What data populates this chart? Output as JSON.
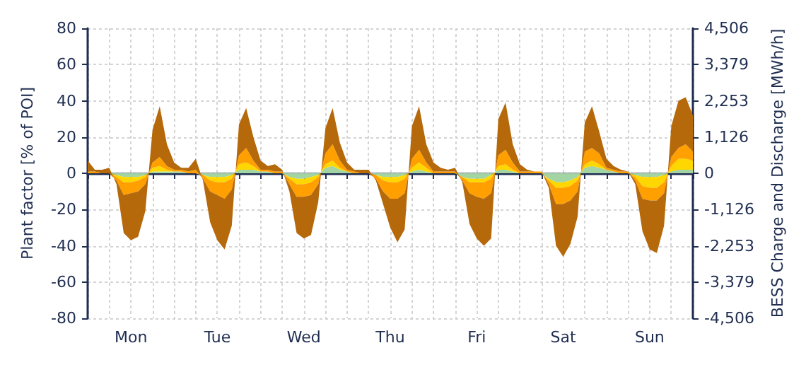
{
  "chart_data": {
    "type": "area",
    "stacked": true,
    "ylabel": "Plant factor [% of POI]",
    "y2label": "BESS Charge and Discharge [MWh/h]",
    "categories": [
      null,
      null,
      null,
      null,
      null,
      null,
      "Mon",
      null,
      null,
      null,
      null,
      null,
      null,
      null,
      null,
      null,
      null,
      null,
      "Tue",
      null,
      null,
      null,
      null,
      null,
      null,
      null,
      null,
      null,
      null,
      null,
      "Wed",
      null,
      null,
      null,
      null,
      null,
      null,
      null,
      null,
      null,
      null,
      null,
      "Thu",
      null,
      null,
      null,
      null,
      null,
      null,
      null,
      null,
      null,
      null,
      null,
      "Fri",
      null,
      null,
      null,
      null,
      null,
      null,
      null,
      null,
      null,
      null,
      null,
      "Sat",
      null,
      null,
      null,
      null,
      null,
      null,
      null,
      null,
      null,
      null,
      null,
      "Sun",
      null,
      null,
      null,
      null,
      null,
      null
    ],
    "series": [
      {
        "color": "#a3d4a3",
        "values": [
          0,
          0,
          0,
          0,
          -1,
          -2,
          -2,
          -2,
          -1,
          1,
          1,
          1,
          1,
          1,
          0,
          0,
          -1,
          -2,
          -2,
          -2,
          -1,
          2,
          2,
          2,
          1,
          1,
          0,
          0,
          -2,
          -3,
          -3,
          -2,
          -1,
          3,
          4,
          2,
          1,
          0,
          0,
          0,
          -1,
          -2,
          -2,
          -2,
          -1,
          1,
          2,
          1,
          0,
          0,
          0,
          0,
          -2,
          -3,
          -3,
          -3,
          -1,
          2,
          2,
          1,
          0,
          0,
          0,
          0,
          -3,
          -5,
          -5,
          -4,
          -2,
          3,
          4,
          3,
          2,
          1,
          0,
          0,
          -1,
          -2,
          -2,
          -2,
          -1,
          1,
          2,
          2,
          2
        ]
      },
      {
        "color": "#ffd700",
        "values": [
          0,
          0,
          0,
          0,
          -1,
          -3,
          -3,
          -2,
          -1,
          2,
          3,
          1,
          0,
          0,
          0,
          0,
          0,
          -2,
          -3,
          -3,
          -2,
          3,
          4,
          2,
          0,
          0,
          0,
          0,
          -1,
          -3,
          -3,
          -3,
          -1,
          2,
          3,
          1,
          0,
          0,
          0,
          0,
          0,
          -2,
          -3,
          -3,
          -2,
          2,
          4,
          2,
          0,
          0,
          0,
          0,
          0,
          -2,
          -2,
          -2,
          -2,
          2,
          3,
          1,
          0,
          0,
          0,
          0,
          -1,
          -3,
          -3,
          -3,
          -2,
          2,
          3,
          2,
          0,
          0,
          0,
          0,
          -1,
          -5,
          -6,
          -6,
          -4,
          3,
          6,
          6,
          5
        ]
      },
      {
        "color": "#ffa000",
        "values": [
          1,
          1,
          0,
          0,
          -2,
          -7,
          -6,
          -6,
          -4,
          3,
          5,
          2,
          1,
          1,
          1,
          2,
          -2,
          -6,
          -7,
          -9,
          -6,
          5,
          8,
          3,
          1,
          1,
          1,
          1,
          -3,
          -7,
          -7,
          -7,
          -4,
          6,
          9,
          4,
          1,
          1,
          0,
          0,
          -2,
          -6,
          -9,
          -9,
          -8,
          5,
          7,
          3,
          1,
          1,
          1,
          1,
          -2,
          -6,
          -8,
          -9,
          -8,
          6,
          8,
          4,
          1,
          1,
          1,
          1,
          -2,
          -9,
          -9,
          -8,
          -6,
          7,
          7,
          6,
          1,
          1,
          1,
          1,
          -2,
          -7,
          -7,
          -7,
          -6,
          5,
          6,
          8,
          5
        ]
      },
      {
        "color": "#b5690a",
        "values": [
          6,
          1,
          2,
          3,
          -2,
          -21,
          -26,
          -25,
          -15,
          18,
          28,
          12,
          4,
          1,
          2,
          6,
          -1,
          -17,
          -25,
          -28,
          -20,
          17,
          22,
          13,
          5,
          2,
          4,
          1,
          -4,
          -20,
          -23,
          -22,
          -10,
          14,
          20,
          10,
          4,
          1,
          2,
          2,
          -1,
          -7,
          -16,
          -24,
          -20,
          18,
          24,
          10,
          5,
          2,
          1,
          2,
          -1,
          -17,
          -23,
          -26,
          -25,
          20,
          26,
          10,
          4,
          1,
          0,
          0,
          -2,
          -23,
          -29,
          -24,
          -14,
          16,
          23,
          12,
          5,
          2,
          1,
          0,
          -2,
          -18,
          -27,
          -29,
          -18,
          17,
          26,
          26,
          20
        ]
      }
    ],
    "ylim": [
      -80,
      80
    ],
    "yticks": [
      -80,
      -60,
      -40,
      -20,
      0,
      20,
      40,
      60,
      80
    ],
    "y2lim": [
      -4506,
      4506
    ],
    "y2ticks": [
      {
        "value": -4506,
        "label": "-4,506"
      },
      {
        "value": -3379.5,
        "label": "-3,379"
      },
      {
        "value": -2253,
        "label": "-2,253"
      },
      {
        "value": -1126.5,
        "label": "-1,126"
      },
      0,
      {
        "value": 1126.5,
        "label": "1,126"
      },
      {
        "value": 2253,
        "label": "2,253"
      },
      {
        "value": 3379.5,
        "label": "3,379"
      },
      {
        "value": 4506,
        "label": "4,506"
      }
    ],
    "grid": true
  }
}
